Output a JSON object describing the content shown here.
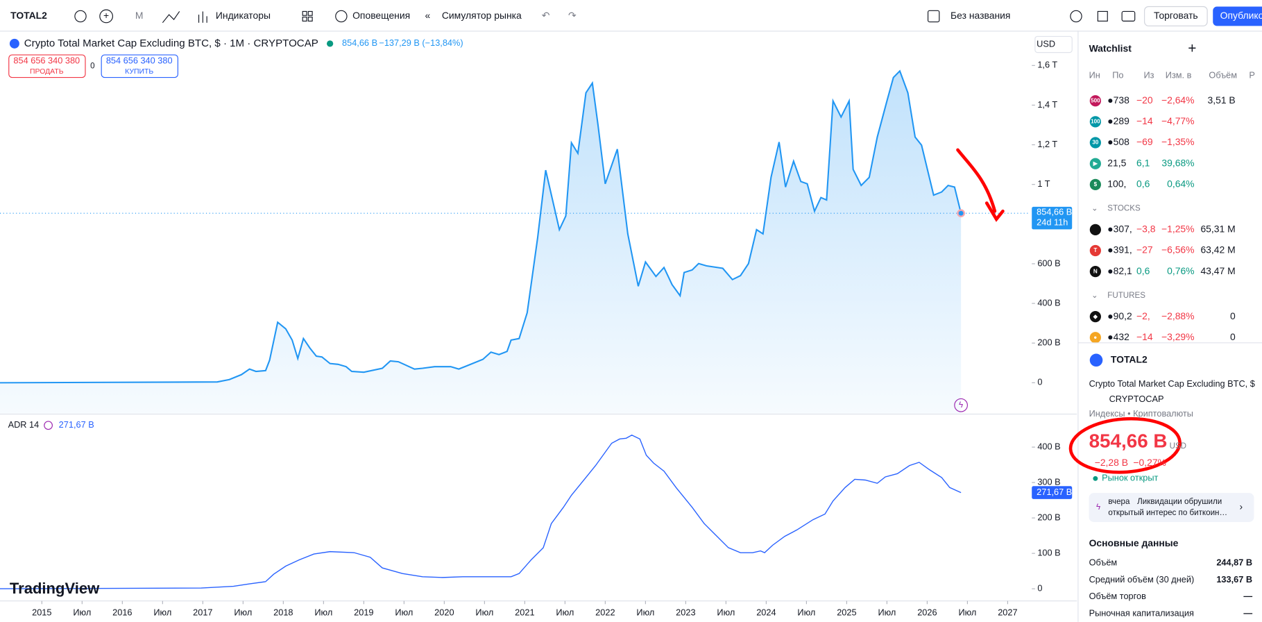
{
  "toolbar": {
    "symbol": "TOTAL2",
    "interval": "М",
    "indicators": "Индикаторы",
    "alerts": "Оповещения",
    "replay": "Симулятор рынка",
    "layout_name": "Без названия",
    "trade": "Торговать",
    "publish": "Опубликовать"
  },
  "legend": {
    "title": "Crypto Total Market Cap Excluding BTC, $ · 1M · CRYPTOCAP",
    "last": "854,66 B",
    "change": "−137,29 B (−13,84%)",
    "sell_price": "854 656 340 380",
    "sell": "ПРОДАТЬ",
    "spread": "0",
    "buy_price": "854 656 340 380",
    "buy": "КУПИТЬ",
    "currency": "USD"
  },
  "main_chart": {
    "type": "line",
    "color": "#2196f3",
    "last_label": "854,66 B",
    "countdown": "24d 11h",
    "x": [
      2014.48,
      2017.18,
      2017.33,
      2017.48,
      2017.58,
      2017.66,
      2017.78,
      2017.83,
      2017.93,
      2018.03,
      2018.11,
      2018.18,
      2018.25,
      2018.33,
      2018.41,
      2018.48,
      2018.58,
      2018.68,
      2018.78,
      2018.85,
      2019.0,
      2019.23,
      2019.33,
      2019.43,
      2019.63,
      2019.73,
      2019.88,
      2020.08,
      2020.18,
      2020.28,
      2020.48,
      2020.58,
      2020.68,
      2020.78,
      2020.83,
      2020.93,
      2021.03,
      2021.16,
      2021.26,
      2021.43,
      2021.51,
      2021.58,
      2021.66,
      2021.76,
      2021.84,
      2021.91,
      2022.0,
      2022.15,
      2022.28,
      2022.41,
      2022.5,
      2022.63,
      2022.73,
      2022.83,
      2022.93,
      2022.98,
      2023.08,
      2023.16,
      2023.26,
      2023.46,
      2023.58,
      2023.68,
      2023.78,
      2023.88,
      2023.96,
      2024.06,
      2024.16,
      2024.24,
      2024.34,
      2024.43,
      2024.51,
      2024.6,
      2024.68,
      2024.75,
      2024.83,
      2024.93,
      2025.03,
      2025.08,
      2025.18,
      2025.28,
      2025.38,
      2025.5,
      2025.58,
      2025.66,
      2025.76,
      2025.85,
      2025.93,
      2026.08,
      2026.18,
      2026.26,
      2026.34,
      2026.42
    ],
    "values": [
      0,
      4,
      16,
      41,
      69,
      57,
      61,
      114,
      305,
      272,
      215,
      122,
      223,
      175,
      134,
      130,
      97,
      93,
      81,
      57,
      53,
      73,
      110,
      106,
      69,
      73,
      81,
      81,
      69,
      85,
      118,
      154,
      142,
      158,
      215,
      223,
      353,
      731,
      1072,
      772,
      841,
      1210,
      1157,
      1462,
      1511,
      1300,
      1003,
      1178,
      751,
      487,
      609,
      536,
      581,
      495,
      439,
      556,
      569,
      601,
      589,
      577,
      520,
      540,
      601,
      772,
      751,
      1036,
      1214,
      987,
      1117,
      1015,
      1003,
      865,
      934,
      922,
      1421,
      1340,
      1421,
      1076,
      995,
      1036,
      1239,
      1421,
      1539,
      1572,
      1462,
      1239,
      1198,
      946,
      962,
      995,
      987,
      854.66
    ],
    "xlim": [
      2014.48,
      2027.28
    ],
    "ylim": [
      -150,
      1767
    ],
    "yticks": [
      0,
      {
        "value": 200,
        "label": "200 B"
      },
      {
        "value": 400,
        "label": "400 B"
      },
      {
        "value": 600,
        "label": "600 B"
      },
      {
        "value": 1000,
        "label": "1 T"
      },
      {
        "value": 1200,
        "label": "1,2 T"
      },
      {
        "value": 1400,
        "label": "1,4 T"
      },
      {
        "value": 1600,
        "label": "1,6 T"
      }
    ],
    "xticks": [
      2015,
      {
        "value": 2015.5,
        "label": "Июл"
      },
      2016,
      {
        "value": 2016.5,
        "label": "Июл"
      },
      2017,
      {
        "value": 2017.5,
        "label": "Июл"
      },
      2018,
      {
        "value": 2018.5,
        "label": "Июл"
      },
      2019,
      {
        "value": 2019.5,
        "label": "Июл"
      },
      2020,
      {
        "value": 2020.5,
        "label": "Июл"
      },
      2021,
      {
        "value": 2021.5,
        "label": "Июл"
      },
      2022,
      {
        "value": 2022.5,
        "label": "Июл"
      },
      2023,
      {
        "value": 2023.5,
        "label": "Июл"
      },
      2024,
      {
        "value": 2024.5,
        "label": "Июл"
      },
      2025,
      {
        "value": 2025.5,
        "label": "Июл"
      },
      2026,
      {
        "value": 2026.5,
        "label": "Июл"
      },
      2027
    ]
  },
  "adr_chart": {
    "type": "line",
    "name": "ADR 14",
    "last": "271,67 B",
    "color": "#2962ff",
    "x": [
      2014.48,
      2016.98,
      2017.38,
      2017.58,
      2017.78,
      2017.88,
      2018.03,
      2018.2,
      2018.38,
      2018.58,
      2018.88,
      2019.08,
      2019.23,
      2019.48,
      2019.73,
      2019.98,
      2020.23,
      2020.48,
      2020.83,
      2020.93,
      2021.08,
      2021.23,
      2021.33,
      2021.48,
      2021.58,
      2021.78,
      2021.88,
      2022.08,
      2022.18,
      2022.26,
      2022.33,
      2022.43,
      2022.51,
      2022.6,
      2022.73,
      2022.88,
      2023.08,
      2023.23,
      2023.38,
      2023.53,
      2023.68,
      2023.83,
      2023.93,
      2023.98,
      2024.08,
      2024.23,
      2024.38,
      2024.58,
      2024.73,
      2024.83,
      2024.98,
      2025.1,
      2025.23,
      2025.38,
      2025.48,
      2025.63,
      2025.78,
      2025.9,
      2026.03,
      2026.18,
      2026.28,
      2026.42
    ],
    "values": [
      0,
      2,
      7,
      14,
      20,
      41,
      64,
      82,
      98,
      105,
      102,
      89,
      59,
      43,
      34,
      32,
      34,
      34,
      34,
      43,
      82,
      116,
      184,
      230,
      264,
      320,
      348,
      411,
      423,
      425,
      434,
      423,
      377,
      355,
      332,
      286,
      230,
      184,
      150,
      116,
      102,
      102,
      107,
      102,
      123,
      148,
      166,
      195,
      211,
      248,
      286,
      309,
      307,
      298,
      316,
      325,
      348,
      357,
      336,
      314,
      286,
      271.67
    ],
    "ylim": [
      -32,
      491
    ],
    "yticks": [
      0,
      {
        "value": 100,
        "label": "100 B"
      },
      {
        "value": 200,
        "label": "200 B"
      },
      {
        "value": 300,
        "label": "300 B"
      },
      {
        "value": 400,
        "label": "400 B"
      }
    ]
  },
  "watchlist": {
    "title": "Watchlist",
    "columns": [
      "Ин",
      "По",
      "Из",
      "Изм. в",
      "Объём",
      "Р"
    ],
    "groups": [
      {
        "rows": [
          {
            "icon": "500",
            "icon_color": "#c2185b",
            "last": "●738",
            "chg": "−20",
            "chg_pct": "−2,64%",
            "vol": "3,51 B"
          },
          {
            "icon": "100",
            "icon_color": "#0097a7",
            "last": "●289",
            "chg": "−14",
            "chg_pct": "−4,77%"
          },
          {
            "icon": "30",
            "icon_color": "#0097a7",
            "last": "●508",
            "chg": "−69",
            "chg_pct": "−1,35%"
          },
          {
            "icon": "▶",
            "icon_color": "#22ab94",
            "last": "21,5",
            "chg": "6,1",
            "chg_pct": "39,68%"
          },
          {
            "icon": "$",
            "icon_color": "#1b8a5a",
            "last": "100,",
            "chg": "0,6",
            "chg_pct": "0,64%"
          }
        ]
      },
      {
        "name": "STOCKS",
        "rows": [
          {
            "icon": "",
            "icon_color": "#111",
            "last": "●307,",
            "chg": "−3,8",
            "chg_pct": "−1,25%",
            "vol": "65,31 M"
          },
          {
            "icon": "T",
            "icon_color": "#e53935",
            "last": "●391,",
            "chg": "−27",
            "chg_pct": "−6,56%",
            "vol": "63,42 M"
          },
          {
            "icon": "N",
            "icon_color": "#111",
            "last": "●82,1",
            "chg": "0,6",
            "chg_pct": "0,76%",
            "vol": "43,47 M"
          }
        ]
      },
      {
        "name": "FUTURES",
        "rows": [
          {
            "icon": "◆",
            "icon_color": "#111",
            "last": "●90,2",
            "chg": "−2,",
            "chg_pct": "−2,88%",
            "vol": "0"
          },
          {
            "icon": "●",
            "icon_color": "#f5a623",
            "last": "●432",
            "chg": "−14",
            "chg_pct": "−3,29%",
            "vol": "0"
          }
        ]
      }
    ]
  },
  "details": {
    "symbol": "TOTAL2",
    "description": "Crypto Total Market Cap Excluding BTC, $",
    "exchange": "CRYPTOCAP",
    "category": "Индексы • Криптовалюты",
    "price": "854,66 B",
    "currency": "USD",
    "change": "−2,28 B",
    "change_pct": "−0,27%",
    "status": "Рынок открыт",
    "news_time": "вчера",
    "news_text_1": "Ликвидации обрушили",
    "news_text_2": "открытый интерес по биткоин…",
    "section": "Основные данные",
    "facts": [
      {
        "label": "Объём",
        "value": "244,87 B"
      },
      {
        "label": "Средний объём (30 дней)",
        "value": "133,67 B"
      },
      {
        "label": "Объём торгов",
        "value": "—"
      },
      {
        "label": "Рыночная капитализация",
        "value": "—"
      }
    ]
  },
  "branding": "TradingView"
}
